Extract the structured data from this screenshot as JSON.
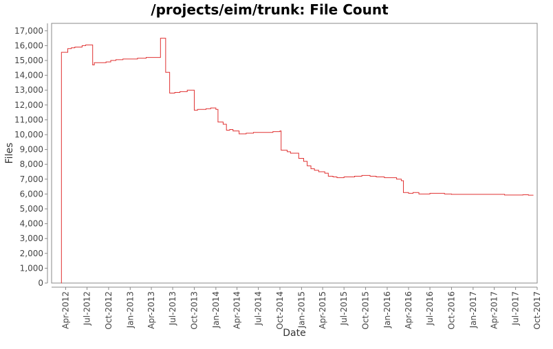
{
  "chart_data": {
    "type": "line",
    "step": true,
    "title": "/projects/eim/trunk: File Count",
    "xlabel": "Date",
    "ylabel": "Files",
    "xlim": [
      "2012-02-01",
      "2017-10-01"
    ],
    "ylim": [
      0,
      17500
    ],
    "grid": false,
    "legend": "none",
    "line_color": "#e03030",
    "y_ticks": [
      0,
      1000,
      2000,
      3000,
      4000,
      5000,
      6000,
      7000,
      8000,
      9000,
      10000,
      11000,
      12000,
      13000,
      14000,
      15000,
      16000,
      17000
    ],
    "y_tick_labels": [
      "0",
      "1,000",
      "2,000",
      "3,000",
      "4,000",
      "5,000",
      "6,000",
      "7,000",
      "8,000",
      "9,000",
      "10,000",
      "11,000",
      "12,000",
      "13,000",
      "14,000",
      "15,000",
      "16,000",
      "17,000"
    ],
    "x_ticks": [
      "2012-04-01",
      "2012-07-01",
      "2012-10-01",
      "2013-01-01",
      "2013-04-01",
      "2013-07-01",
      "2013-10-01",
      "2014-01-01",
      "2014-04-01",
      "2014-07-01",
      "2014-10-01",
      "2015-01-01",
      "2015-04-01",
      "2015-07-01",
      "2015-10-01",
      "2016-01-01",
      "2016-04-01",
      "2016-07-01",
      "2016-10-01",
      "2017-01-01",
      "2017-04-01",
      "2017-07-01",
      "2017-10-01"
    ],
    "x_tick_labels": [
      "Apr-2012",
      "Jul-2012",
      "Oct-2012",
      "Jan-2013",
      "Apr-2013",
      "Jul-2013",
      "Oct-2013",
      "Jan-2014",
      "Apr-2014",
      "Jul-2014",
      "Oct-2014",
      "Jan-2015",
      "Apr-2015",
      "Jul-2015",
      "Oct-2015",
      "Jan-2016",
      "Apr-2016",
      "Jul-2016",
      "Oct-2016",
      "Jan-2017",
      "Apr-2017",
      "Jul-2017",
      "Oct-2017"
    ],
    "series": [
      {
        "points": [
          [
            "2012-03-13",
            0
          ],
          [
            "2012-03-14",
            15550
          ],
          [
            "2012-04-10",
            15800
          ],
          [
            "2012-04-25",
            15850
          ],
          [
            "2012-05-10",
            15900
          ],
          [
            "2012-06-10",
            16000
          ],
          [
            "2012-06-25",
            16050
          ],
          [
            "2012-07-25",
            14700
          ],
          [
            "2012-08-01",
            14850
          ],
          [
            "2012-09-20",
            14900
          ],
          [
            "2012-10-10",
            15000
          ],
          [
            "2012-11-01",
            15050
          ],
          [
            "2012-12-01",
            15100
          ],
          [
            "2013-01-01",
            15100
          ],
          [
            "2013-02-01",
            15150
          ],
          [
            "2013-03-10",
            15200
          ],
          [
            "2013-05-10",
            16500
          ],
          [
            "2013-06-01",
            14200
          ],
          [
            "2013-06-18",
            12800
          ],
          [
            "2013-07-10",
            12850
          ],
          [
            "2013-08-01",
            12900
          ],
          [
            "2013-09-01",
            13000
          ],
          [
            "2013-10-01",
            11650
          ],
          [
            "2013-10-15",
            11700
          ],
          [
            "2013-11-20",
            11750
          ],
          [
            "2013-12-10",
            11800
          ],
          [
            "2014-01-01",
            11700
          ],
          [
            "2014-01-10",
            10850
          ],
          [
            "2014-02-01",
            10700
          ],
          [
            "2014-02-15",
            10300
          ],
          [
            "2014-03-01",
            10350
          ],
          [
            "2014-03-15",
            10250
          ],
          [
            "2014-04-10",
            10050
          ],
          [
            "2014-05-10",
            10100
          ],
          [
            "2014-06-10",
            10150
          ],
          [
            "2014-07-10",
            10150
          ],
          [
            "2014-08-10",
            10150
          ],
          [
            "2014-09-01",
            10200
          ],
          [
            "2014-10-01",
            10250
          ],
          [
            "2014-10-06",
            8950
          ],
          [
            "2014-11-01",
            8850
          ],
          [
            "2014-11-15",
            8750
          ],
          [
            "2014-12-20",
            8400
          ],
          [
            "2015-01-10",
            8200
          ],
          [
            "2015-01-25",
            7900
          ],
          [
            "2015-02-10",
            7700
          ],
          [
            "2015-02-25",
            7600
          ],
          [
            "2015-03-15",
            7500
          ],
          [
            "2015-04-10",
            7400
          ],
          [
            "2015-04-25",
            7200
          ],
          [
            "2015-05-15",
            7150
          ],
          [
            "2015-06-01",
            7100
          ],
          [
            "2015-07-01",
            7150
          ],
          [
            "2015-07-20",
            7150
          ],
          [
            "2015-08-15",
            7200
          ],
          [
            "2015-09-15",
            7250
          ],
          [
            "2015-10-20",
            7200
          ],
          [
            "2015-11-15",
            7150
          ],
          [
            "2015-12-20",
            7100
          ],
          [
            "2016-01-20",
            7100
          ],
          [
            "2016-02-10",
            7000
          ],
          [
            "2016-03-01",
            6900
          ],
          [
            "2016-03-10",
            6100
          ],
          [
            "2016-04-01",
            6050
          ],
          [
            "2016-04-20",
            6100
          ],
          [
            "2016-05-15",
            6000
          ],
          [
            "2016-07-01",
            6050
          ],
          [
            "2016-08-01",
            6050
          ],
          [
            "2016-09-01",
            6000
          ],
          [
            "2016-10-01",
            5980
          ],
          [
            "2017-01-01",
            5980
          ],
          [
            "2017-04-01",
            5980
          ],
          [
            "2017-05-15",
            5930
          ],
          [
            "2017-07-15",
            5930
          ],
          [
            "2017-08-01",
            5950
          ],
          [
            "2017-08-25",
            5920
          ],
          [
            "2017-09-15",
            5920
          ]
        ]
      }
    ]
  }
}
